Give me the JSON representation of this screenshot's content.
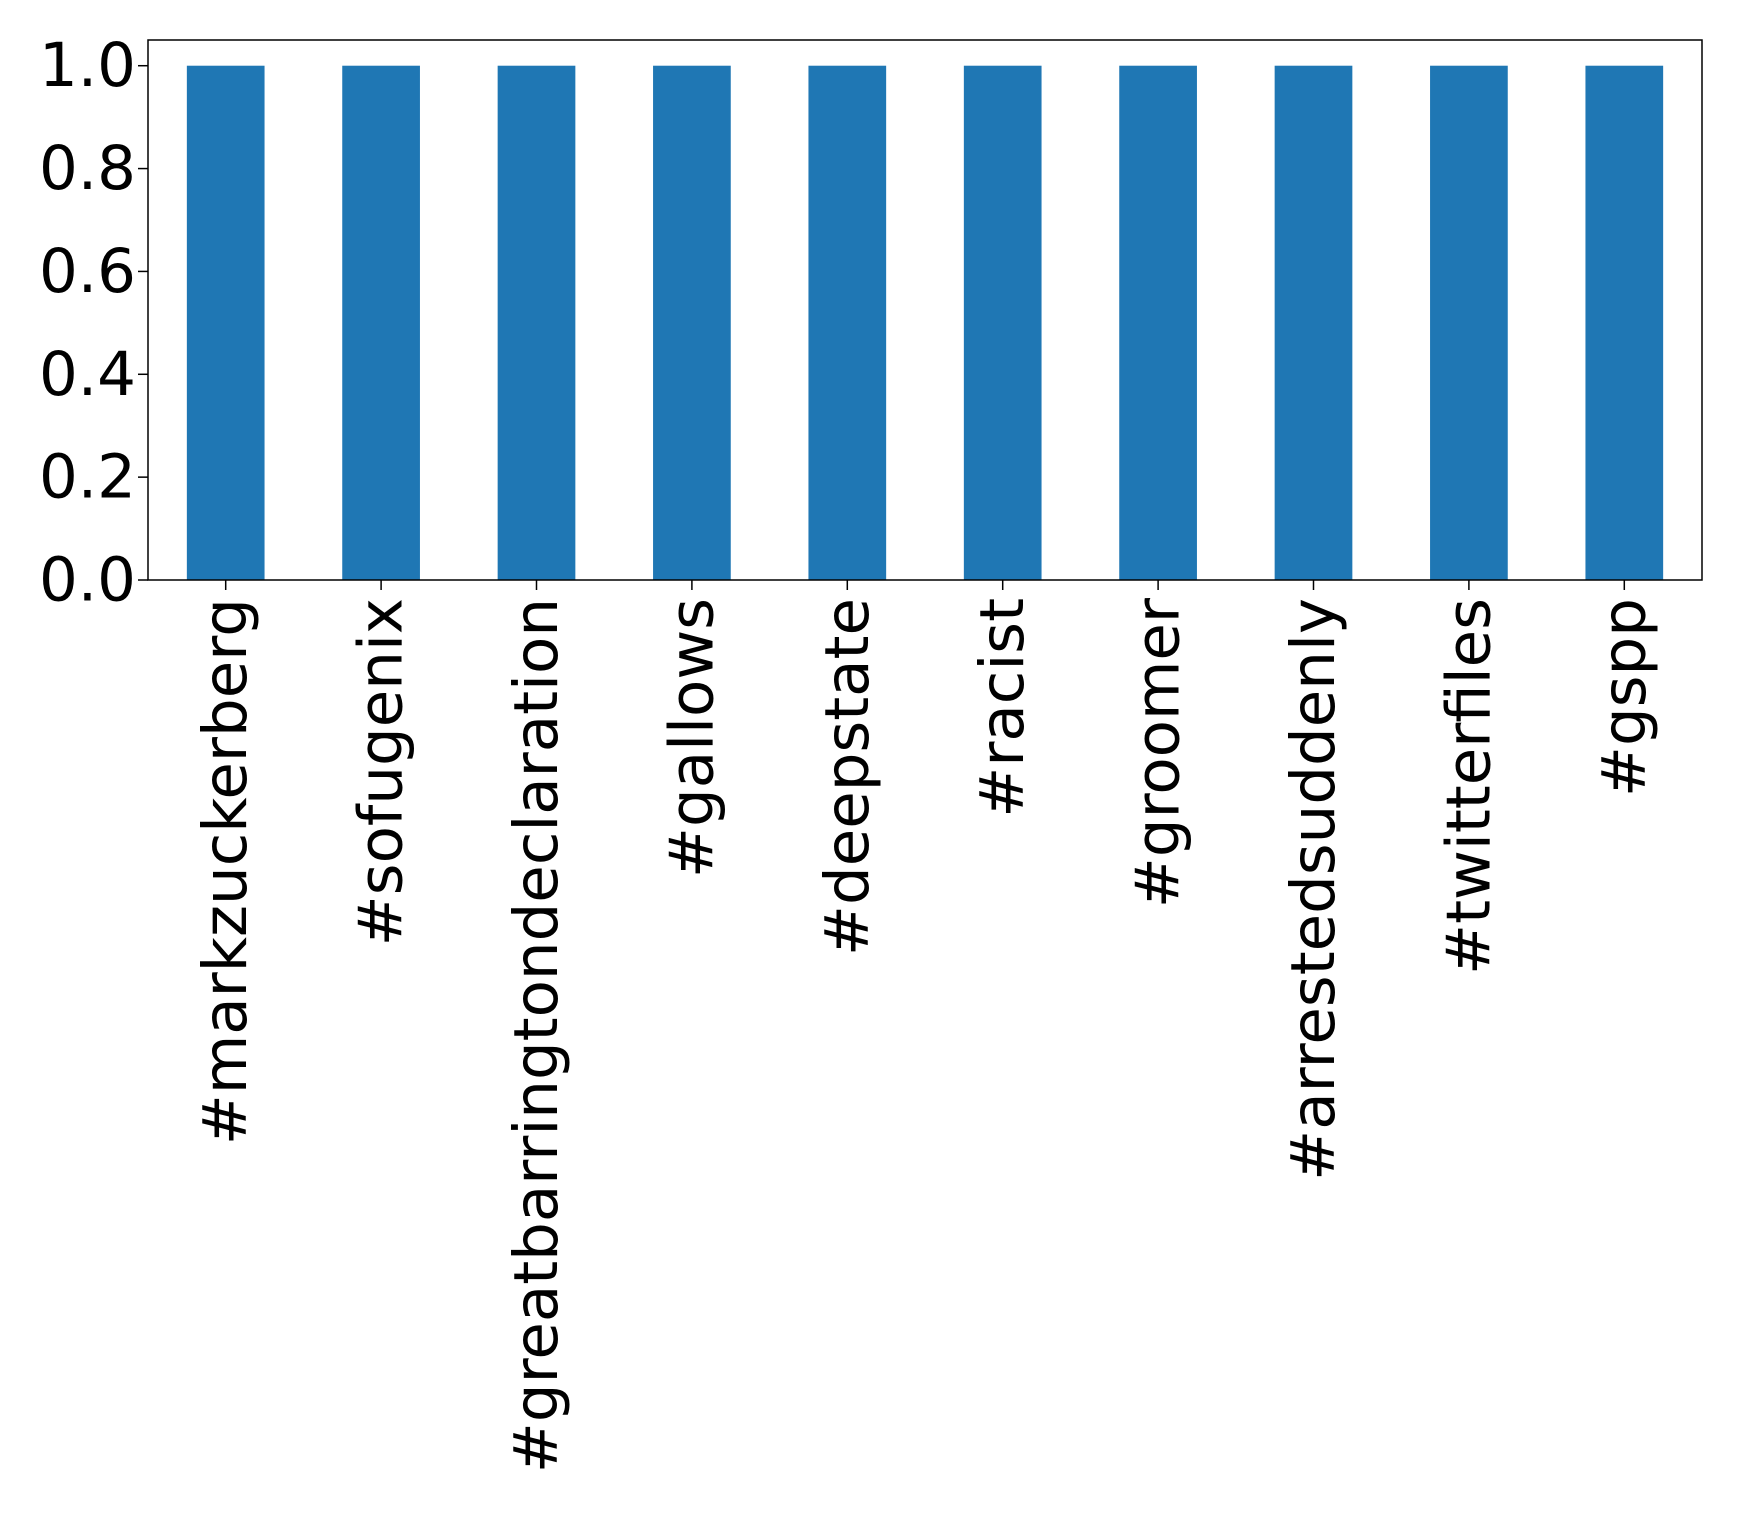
{
  "chart_data": {
    "type": "bar",
    "categories": [
      "#markzuckerberg",
      "#sofugenix",
      "#greatbarringtondeclaration",
      "#gallows",
      "#deepstate",
      "#racist",
      "#groomer",
      "#arrestedsuddenly",
      "#twitterfiles",
      "#gspp"
    ],
    "values": [
      1.0,
      1.0,
      1.0,
      1.0,
      1.0,
      1.0,
      1.0,
      1.0,
      1.0,
      1.0
    ],
    "title": "",
    "xlabel": "",
    "ylabel": "",
    "ylim": [
      0,
      1.05
    ],
    "yticks": [
      "0.0",
      "0.2",
      "0.4",
      "0.6",
      "0.8",
      "1.0"
    ],
    "grid": false,
    "legend": "none",
    "bar_color": "#1f77b4"
  }
}
